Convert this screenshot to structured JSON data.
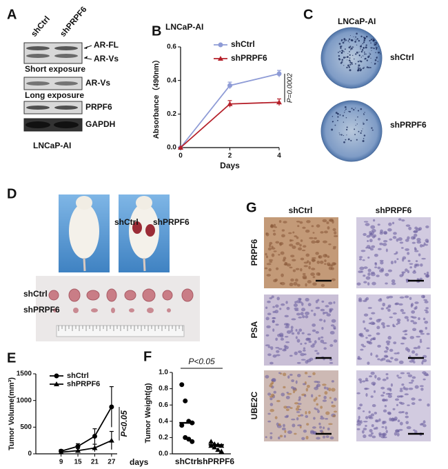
{
  "panel_a": {
    "letter": "A",
    "columns": [
      "shCtrl",
      "shPRPF6"
    ],
    "bands": [
      "AR-FL",
      "AR-Vs"
    ],
    "short_exposure": "Short exposure",
    "long_band": "AR-Vs",
    "long_exposure": "Long exposure",
    "proteins": [
      "PRPF6",
      "GAPDH"
    ],
    "cell_line": "LNCaP-AI"
  },
  "panel_c": {
    "letter": "C",
    "cell_line": "LNCaP-AI",
    "labels": [
      "shCtrl",
      "shPRPF6"
    ]
  },
  "panel_d": {
    "letter": "D",
    "mouse_labels": [
      "shCtrl",
      "shPRPF6"
    ],
    "row_labels": [
      "shCtrl",
      "shPRPF6"
    ]
  },
  "panel_g": {
    "letter": "G",
    "columns": [
      "shCtrl",
      "shPRPF6"
    ],
    "rows": [
      "PRPF6",
      "PSA",
      "UBE2C"
    ]
  },
  "chart_data": [
    {
      "type": "line",
      "letter": "B",
      "title": "LNCaP-AI",
      "x_label": "Days",
      "y_label": "Absorbance（490nm）",
      "x": [
        0,
        2,
        4
      ],
      "xlim": [
        0,
        4
      ],
      "xticks": [
        0,
        2,
        4
      ],
      "ylim": [
        0,
        0.6
      ],
      "yticks": [
        {
          "value": 0,
          "label": "0.0"
        },
        0.2,
        0.4,
        0.6
      ],
      "series": [
        {
          "name": "shCtrl",
          "color": "#8e9bd6",
          "marker": "circle",
          "values": [
            0,
            0.37,
            0.44
          ],
          "errors": [
            0,
            0.02,
            0.02
          ]
        },
        {
          "name": "shPRPF6",
          "color": "#b5202a",
          "marker": "triangle",
          "values": [
            0,
            0.26,
            0.27
          ],
          "errors": [
            0,
            0.02,
            0.02
          ]
        }
      ],
      "annotation": "P=0.0002",
      "legend": "top"
    },
    {
      "type": "line",
      "letter": "E",
      "x_label": "days",
      "y_label": "Tumor Volume(mm³)",
      "x": [
        9,
        15,
        21,
        27
      ],
      "xlim": [
        0,
        29
      ],
      "xticks": [
        9,
        15,
        21,
        27
      ],
      "ylim": [
        0,
        1500
      ],
      "yticks": [
        0,
        500,
        1000,
        1500
      ],
      "series": [
        {
          "name": "shCtrl",
          "color": "#000000",
          "marker": "circle",
          "values": [
            50,
            140,
            330,
            880
          ],
          "errors": [
            30,
            50,
            140,
            380
          ]
        },
        {
          "name": "shPRPF6",
          "color": "#000000",
          "marker": "triangle",
          "values": [
            30,
            60,
            110,
            250
          ],
          "errors": [
            20,
            40,
            70,
            170
          ]
        }
      ],
      "annotation": "P<0.05",
      "legend": "top-left"
    },
    {
      "type": "dot",
      "letter": "F",
      "y_label": "Tumor Weight(g)",
      "categories": [
        "shCtrl",
        "shPRPF6"
      ],
      "values": [
        [
          0.85,
          0.65,
          0.4,
          0.38,
          0.35,
          0.2,
          0.18,
          0.15
        ],
        [
          0.15,
          0.12,
          0.11,
          0.1,
          0.1,
          0.08,
          0.05,
          0.03
        ]
      ],
      "means": [
        0.38,
        0.11
      ],
      "markers": [
        "circle",
        "triangle"
      ],
      "color": "#000000",
      "ylim": [
        0,
        1
      ],
      "yticks": [
        {
          "value": 0,
          "label": "0.0"
        },
        0.2,
        0.4,
        0.6,
        0.8,
        {
          "value": 1,
          "label": "1.0"
        }
      ],
      "annotation": "P<0.05"
    }
  ]
}
